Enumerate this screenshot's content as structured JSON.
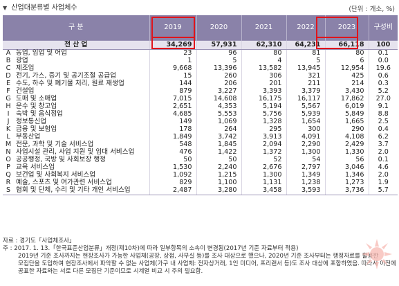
{
  "title": "산업대분류별 사업체수",
  "unit": "(단위 : 개소, %)",
  "headers": {
    "category": "구 분",
    "y2019": "2019",
    "y2020": "2020",
    "y2021": "2021",
    "y2022": "2022",
    "y2023": "2023",
    "share": "구성비"
  },
  "total": {
    "label": "전 산 업",
    "y2019": "34,269",
    "y2020": "57,931",
    "y2021": "62,310",
    "y2022": "64,231",
    "y2023": "66,118",
    "share": "100"
  },
  "rows": [
    {
      "code": "A",
      "name": "농업, 임업 및 어업",
      "y2019": "23",
      "y2020": "96",
      "y2021": "80",
      "y2022": "81",
      "y2023": "80",
      "share": "0.1"
    },
    {
      "code": "B",
      "name": "광업",
      "y2019": "1",
      "y2020": "5",
      "y2021": "4",
      "y2022": "5",
      "y2023": "6",
      "share": "0.0"
    },
    {
      "code": "C",
      "name": "제조업",
      "y2019": "9,668",
      "y2020": "13,396",
      "y2021": "13,582",
      "y2022": "13,945",
      "y2023": "12,954",
      "share": "19.6"
    },
    {
      "code": "D",
      "name": "전기, 가스, 증기 및 공기조절 공급업",
      "y2019": "15",
      "y2020": "260",
      "y2021": "306",
      "y2022": "321",
      "y2023": "425",
      "share": "0.6"
    },
    {
      "code": "E",
      "name": "수도, 하수 및 폐기물 처리, 원료 재생업",
      "y2019": "144",
      "y2020": "206",
      "y2021": "201",
      "y2022": "211",
      "y2023": "214",
      "share": "0.3"
    },
    {
      "code": "F",
      "name": "건설업",
      "y2019": "879",
      "y2020": "3,227",
      "y2021": "3,393",
      "y2022": "3,379",
      "y2023": "3,430",
      "share": "5.2"
    },
    {
      "code": "G",
      "name": "도매 및 소매업",
      "y2019": "7,015",
      "y2020": "14,608",
      "y2021": "16,175",
      "y2022": "16,117",
      "y2023": "17,862",
      "share": "27.0"
    },
    {
      "code": "H",
      "name": "운수 및 창고업",
      "y2019": "2,651",
      "y2020": "4,353",
      "y2021": "5,194",
      "y2022": "5,567",
      "y2023": "6,019",
      "share": "9.1"
    },
    {
      "code": "I",
      "name": "숙박 및 음식점업",
      "y2019": "4,685",
      "y2020": "5,553",
      "y2021": "5,756",
      "y2022": "5,939",
      "y2023": "5,849",
      "share": "8.8"
    },
    {
      "code": "J",
      "name": "정보통신업",
      "y2019": "149",
      "y2020": "1,069",
      "y2021": "1,328",
      "y2022": "1,654",
      "y2023": "1,665",
      "share": "2.5"
    },
    {
      "code": "K",
      "name": "금융 및 보험업",
      "y2019": "178",
      "y2020": "264",
      "y2021": "295",
      "y2022": "300",
      "y2023": "290",
      "share": "0.4"
    },
    {
      "code": "L",
      "name": "부동산업",
      "y2019": "1,849",
      "y2020": "3,742",
      "y2021": "3,913",
      "y2022": "4,091",
      "y2023": "4,108",
      "share": "6.2"
    },
    {
      "code": "M",
      "name": "전문, 과학 및 기술 서비스업",
      "y2019": "548",
      "y2020": "1,845",
      "y2021": "2,094",
      "y2022": "2,290",
      "y2023": "2,429",
      "share": "3.7"
    },
    {
      "code": "N",
      "name": "사업시설 관리, 사업 지원 및 임대 서비스업",
      "y2019": "476",
      "y2020": "1,422",
      "y2021": "1,372",
      "y2022": "1,300",
      "y2023": "1,330",
      "share": "2.0"
    },
    {
      "code": "O",
      "name": "공공행정, 국방 및 사회보장 행정",
      "y2019": "50",
      "y2020": "50",
      "y2021": "52",
      "y2022": "54",
      "y2023": "56",
      "share": "0.1"
    },
    {
      "code": "P",
      "name": "교육 서비스업",
      "y2019": "1,530",
      "y2020": "2,240",
      "y2021": "2,676",
      "y2022": "2,797",
      "y2023": "3,046",
      "share": "4.6"
    },
    {
      "code": "Q",
      "name": "보건업 및 사회복지 서비스업",
      "y2019": "1,092",
      "y2020": "1,215",
      "y2021": "1,300",
      "y2022": "1,349",
      "y2023": "1,346",
      "share": "2.0"
    },
    {
      "code": "R",
      "name": "예술, 스포츠 및 여가관련 서비스업",
      "y2019": "829",
      "y2020": "1,100",
      "y2021": "1,131",
      "y2022": "1,238",
      "y2023": "1,273",
      "share": "1.9"
    },
    {
      "code": "S",
      "name": "협회 및 단체, 수리 및 기타 개인 서비스업",
      "y2019": "2,487",
      "y2020": "3,280",
      "y2021": "3,458",
      "y2022": "3,593",
      "y2023": "3,736",
      "share": "5.7"
    }
  ],
  "notes": {
    "source": "자료 : 경기도「사업체조사」",
    "note1": "주 : 2017. 1. 13.「한국표준산업분류」개정(제10차)에 따라 일부항목의 소속이 변경됨(2017년 기준 자료부터 적용)",
    "note2": "2019년 기준 조사까지는 현장조사가 가능한 사업체(공장, 상점, 사무실 등)를 조사 대상으로 했으나, 2020년 기준 조사부터는 행정자료를 활용한",
    "note3": "모집단을 도입하여 현장조사에서 파악할 수 없는 사업체(가구 내 사업체: 전자상거래, 1인 미디어, 프리랜서 등)도 조사 대상에 포함하였음. 따라서 이전에",
    "note4": "공표한 자료와는 서로 다른 모집단 기준이므로 시계열 비교 시 주의 필요함."
  }
}
